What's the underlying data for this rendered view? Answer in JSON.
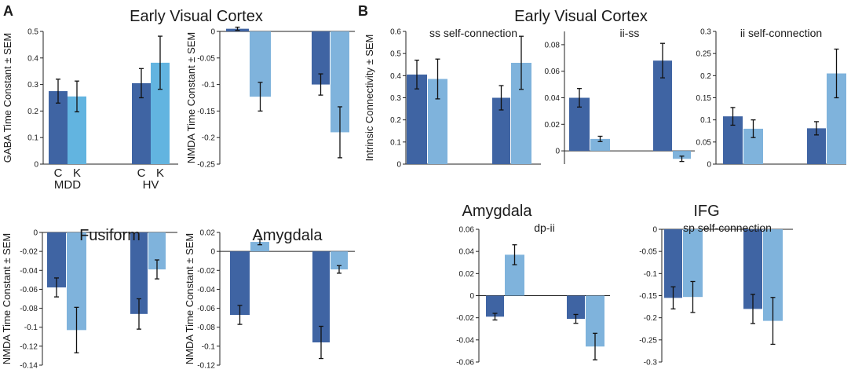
{
  "panel_labels": {
    "a": "A",
    "b": "B"
  },
  "section_titles": {
    "a_top": "Early Visual Cortex",
    "b_top": "Early Visual Cortex",
    "b_amygdala": "Amygdala",
    "b_ifg": "IFG"
  },
  "colors": {
    "dark": "#3f64a3",
    "light": "#7fb3dc",
    "light_a1": "#62b4e0",
    "axis": "#222222",
    "err": "#111111"
  },
  "chart_data": [
    {
      "id": "a1",
      "type": "bar",
      "title": "",
      "ylabel": "GABA Time Constant ± SEM",
      "ylim": [
        0,
        0.5
      ],
      "ticks": [
        0,
        0.1,
        0.2,
        0.3,
        0.4,
        0.5
      ],
      "tick_labels": [
        "0",
        "0.1",
        "0.2",
        "0.3",
        "0.4",
        "0.5"
      ],
      "groups": [
        "MDD",
        "HV"
      ],
      "bar_labels": [
        "C",
        "K"
      ],
      "series": [
        {
          "name": "C",
          "values": [
            0.275,
            0.305
          ],
          "errors": [
            0.045,
            0.055
          ]
        },
        {
          "name": "K",
          "values": [
            0.255,
            0.382
          ],
          "errors": [
            0.058,
            0.1
          ]
        }
      ]
    },
    {
      "id": "a2",
      "type": "bar",
      "title": "",
      "ylabel": "NMDA Time Constant ± SEM",
      "ylim": [
        -0.25,
        0
      ],
      "ticks": [
        0,
        -0.05,
        -0.1,
        -0.15,
        -0.2,
        -0.25
      ],
      "tick_labels": [
        "0",
        "-0.05",
        "-0.1",
        "-0.15",
        "-0.2",
        "-0.25"
      ],
      "series": [
        {
          "name": "C",
          "values": [
            0.005,
            -0.1
          ],
          "errors": [
            0.003,
            0.02
          ]
        },
        {
          "name": "K",
          "values": [
            -0.123,
            -0.19
          ],
          "errors": [
            0.027,
            0.048
          ]
        }
      ]
    },
    {
      "id": "a3",
      "type": "bar",
      "title": "Fusiform",
      "ylabel": "NMDA Time Constant ± SEM",
      "ylim": [
        -0.14,
        0
      ],
      "ticks": [
        0,
        -0.02,
        -0.04,
        -0.06,
        -0.08,
        -0.1,
        -0.12,
        -0.14
      ],
      "tick_labels": [
        "0",
        "-0.02",
        "-0.04",
        "-0.06",
        "-0.08",
        "-0.1",
        "-0.12",
        "-0.14"
      ],
      "series": [
        {
          "name": "C",
          "values": [
            -0.058,
            -0.086
          ],
          "errors": [
            0.01,
            0.016
          ]
        },
        {
          "name": "K",
          "values": [
            -0.103,
            -0.039
          ],
          "errors": [
            0.024,
            0.01
          ]
        }
      ]
    },
    {
      "id": "a4",
      "type": "bar",
      "title": "Amygdala",
      "ylabel": "NMDA Time Constant ± SEM",
      "ylim": [
        -0.12,
        0.02
      ],
      "ticks": [
        0.02,
        0,
        -0.02,
        -0.04,
        -0.06,
        -0.08,
        -0.1,
        -0.12
      ],
      "tick_labels": [
        "0.02",
        "0",
        "-0.02",
        "-0.04",
        "-0.06",
        "-0.08",
        "-0.1",
        "-0.12"
      ],
      "series": [
        {
          "name": "C",
          "values": [
            -0.067,
            -0.096
          ],
          "errors": [
            0.01,
            0.017
          ]
        },
        {
          "name": "K",
          "values": [
            0.01,
            -0.019
          ],
          "errors": [
            0.003,
            0.004
          ]
        }
      ]
    },
    {
      "id": "b1",
      "type": "bar",
      "title": "ss self-connection",
      "ylabel": "Intrinsic Connectivity ± SEM",
      "ylim": [
        0,
        0.6
      ],
      "ticks": [
        0,
        0.1,
        0.2,
        0.3,
        0.4,
        0.5,
        0.6
      ],
      "tick_labels": [
        "0",
        "0.1",
        "0.2",
        "0.3",
        "0.4",
        "0.5",
        "0.6"
      ],
      "series": [
        {
          "name": "C",
          "values": [
            0.405,
            0.3
          ],
          "errors": [
            0.065,
            0.055
          ]
        },
        {
          "name": "K",
          "values": [
            0.385,
            0.458
          ],
          "errors": [
            0.09,
            0.12
          ]
        }
      ]
    },
    {
      "id": "b2",
      "type": "bar",
      "title": "ii-ss",
      "ylabel": "",
      "ylim": [
        -0.01,
        0.09
      ],
      "ticks": [
        0.08,
        0.06,
        0.04,
        0.02,
        0
      ],
      "tick_labels": [
        "0.08",
        "0.06",
        "0.04",
        "0.02",
        "0"
      ],
      "series": [
        {
          "name": "C",
          "values": [
            0.04,
            0.068
          ],
          "errors": [
            0.007,
            0.013
          ]
        },
        {
          "name": "K",
          "values": [
            0.009,
            -0.006
          ],
          "errors": [
            0.002,
            0.002
          ]
        }
      ]
    },
    {
      "id": "b3",
      "type": "bar",
      "title": "ii self-connection",
      "ylabel": "",
      "ylim": [
        0,
        0.3
      ],
      "ticks": [
        0,
        0.05,
        0.1,
        0.15,
        0.2,
        0.25,
        0.3
      ],
      "tick_labels": [
        "0",
        "0.05",
        "0.1",
        "0.15",
        "0.2",
        "0.25",
        "0.3"
      ],
      "series": [
        {
          "name": "C",
          "values": [
            0.108,
            0.081
          ],
          "errors": [
            0.02,
            0.015
          ]
        },
        {
          "name": "K",
          "values": [
            0.08,
            0.205
          ],
          "errors": [
            0.02,
            0.055
          ]
        }
      ]
    },
    {
      "id": "b4",
      "type": "bar",
      "title": "dp-ii",
      "ylabel": "",
      "ylim": [
        -0.06,
        0.06
      ],
      "ticks": [
        0.06,
        0.04,
        0.02,
        0,
        -0.02,
        -0.04,
        -0.06
      ],
      "tick_labels": [
        "0.06",
        "0.04",
        "0.02",
        "0",
        "-0.02",
        "-0.04",
        "-0.06"
      ],
      "series": [
        {
          "name": "C",
          "values": [
            -0.019,
            -0.021
          ],
          "errors": [
            0.003,
            0.004
          ]
        },
        {
          "name": "K",
          "values": [
            0.037,
            -0.046
          ],
          "errors": [
            0.009,
            0.012
          ]
        }
      ]
    },
    {
      "id": "b5",
      "type": "bar",
      "title": "sp self-connection",
      "ylabel": "",
      "ylim": [
        -0.3,
        0
      ],
      "ticks": [
        0,
        -0.05,
        -0.1,
        -0.15,
        -0.2,
        -0.25,
        -0.3
      ],
      "tick_labels": [
        "0",
        "-0.05",
        "-0.1",
        "-0.15",
        "-0.2",
        "-0.25",
        "-0.3"
      ],
      "series": [
        {
          "name": "C",
          "values": [
            -0.155,
            -0.18
          ],
          "errors": [
            0.025,
            0.033
          ]
        },
        {
          "name": "K",
          "values": [
            -0.153,
            -0.207
          ],
          "errors": [
            0.035,
            0.053
          ]
        }
      ]
    }
  ]
}
